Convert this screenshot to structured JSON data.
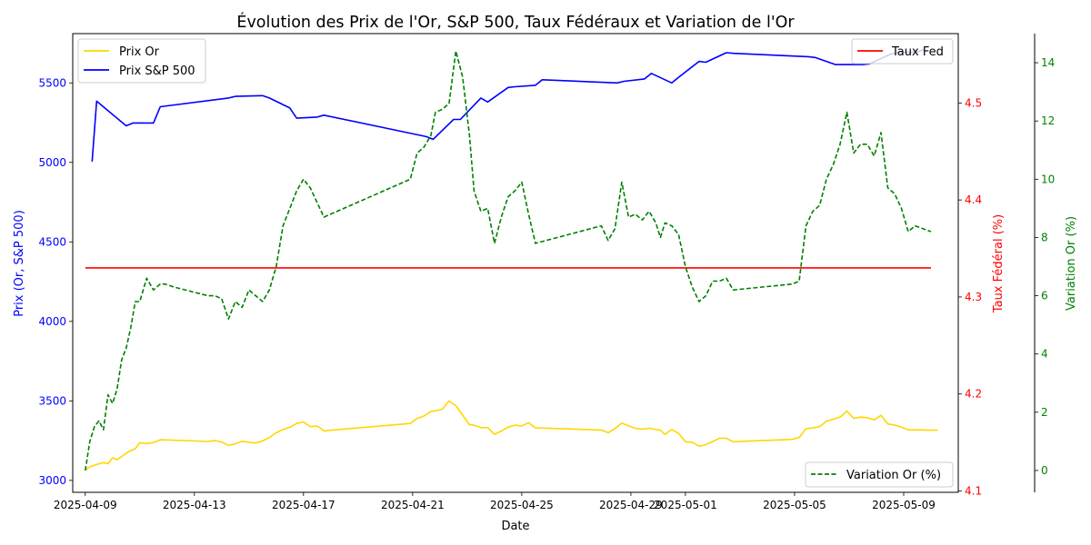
{
  "chart_data": {
    "type": "line",
    "title": "Évolution des Prix de l'Or, S&P 500, Taux Fédéraux et Variation de l'Or",
    "xlabel": "Date",
    "ylabel_left": "Prix (Or, S&P 500)",
    "ylabel_right1": "Taux Fédéral (%)",
    "ylabel_right2": "Variation Or (%)",
    "x_range": [
      "2025-04-08T13:00",
      "2025-05-11T00:00"
    ],
    "ylim_left": [
      2925,
      5810
    ],
    "ylim_right1": [
      4.0986,
      4.5715
    ],
    "ylim_right2": [
      -0.75,
      15.0
    ],
    "x_ticks": [
      {
        "date": "2025-04-09",
        "label": "2025-04-09"
      },
      {
        "date": "2025-04-13",
        "label": "2025-04-13"
      },
      {
        "date": "2025-04-17",
        "label": "2025-04-17"
      },
      {
        "date": "2025-04-21",
        "label": "2025-04-21"
      },
      {
        "date": "2025-04-25",
        "label": "2025-04-25"
      },
      {
        "date": "2025-04-29",
        "label": "2025-04-29"
      },
      {
        "date": "2025-05-01",
        "label": "2025-05-01"
      },
      {
        "date": "2025-05-05",
        "label": "2025-05-05"
      },
      {
        "date": "2025-05-09",
        "label": "2025-05-09"
      }
    ],
    "y_ticks_left": [
      "3000",
      "3500",
      "4000",
      "4500",
      "5000",
      "5500"
    ],
    "y_ticks_right1": [
      "4.1",
      "4.2",
      "4.3",
      "4.4",
      "4.5"
    ],
    "y_ticks_right2": [
      "0",
      "2",
      "4",
      "6",
      "8",
      "10",
      "12",
      "14"
    ],
    "legend_left": {
      "placement": "top-left",
      "entries": [
        "Prix Or",
        "Prix S&P 500"
      ]
    },
    "legend_right1": {
      "placement": "top-right",
      "entries": [
        "Taux Fed"
      ]
    },
    "legend_right2": {
      "placement": "bottom-right",
      "entries": [
        "Variation Or (%)"
      ]
    },
    "colors": {
      "gold": "#ffd700",
      "sp500": "#0000ff",
      "fed": "#ff0000",
      "variation": "#008000",
      "axis": "#000000"
    },
    "series": [
      {
        "name": "Prix Or",
        "axis": "left",
        "x": [
          "2025-04-09T00:00",
          "2025-04-09T04:00",
          "2025-04-09T10:00",
          "2025-04-09T16:00",
          "2025-04-09T20:00",
          "2025-04-10T00:00",
          "2025-04-10T04:00",
          "2025-04-10T08:00",
          "2025-04-10T14:00",
          "2025-04-10T20:00",
          "2025-04-11T00:00",
          "2025-04-11T06:00",
          "2025-04-11T12:00",
          "2025-04-11T18:00",
          "2025-04-13T12:00",
          "2025-04-13T18:00",
          "2025-04-14T00:00",
          "2025-04-14T06:00",
          "2025-04-14T12:00",
          "2025-04-14T18:00",
          "2025-04-15T00:00",
          "2025-04-15T06:00",
          "2025-04-15T12:00",
          "2025-04-15T18:00",
          "2025-04-16T00:00",
          "2025-04-16T06:00",
          "2025-04-16T12:00",
          "2025-04-16T18:00",
          "2025-04-17T00:00",
          "2025-04-17T06:00",
          "2025-04-17T12:00",
          "2025-04-17T18:00",
          "2025-04-20T22:00",
          "2025-04-21T04:00",
          "2025-04-21T10:00",
          "2025-04-21T16:00",
          "2025-04-21T20:00",
          "2025-04-22T02:00",
          "2025-04-22T08:00",
          "2025-04-22T14:00",
          "2025-04-22T20:00",
          "2025-04-23T02:00",
          "2025-04-23T06:00",
          "2025-04-23T12:00",
          "2025-04-23T18:00",
          "2025-04-24T00:00",
          "2025-04-24T06:00",
          "2025-04-24T12:00",
          "2025-04-24T18:00",
          "2025-04-25T00:00",
          "2025-04-25T06:00",
          "2025-04-25T12:00",
          "2025-04-27T22:00",
          "2025-04-28T04:00",
          "2025-04-28T10:00",
          "2025-04-28T16:00",
          "2025-04-28T22:00",
          "2025-04-29T04:00",
          "2025-04-29T10:00",
          "2025-04-29T16:00",
          "2025-04-29T22:00",
          "2025-04-30T02:00",
          "2025-04-30T06:00",
          "2025-04-30T12:00",
          "2025-04-30T18:00",
          "2025-05-01T00:00",
          "2025-05-01T06:00",
          "2025-05-01T12:00",
          "2025-05-01T18:00",
          "2025-05-02T00:00",
          "2025-05-02T06:00",
          "2025-05-02T12:00",
          "2025-05-02T18:00",
          "2025-05-04T22:00",
          "2025-05-05T04:00",
          "2025-05-05T10:00",
          "2025-05-05T16:00",
          "2025-05-05T22:00",
          "2025-05-06T04:00",
          "2025-05-06T10:00",
          "2025-05-06T16:00",
          "2025-05-06T22:00",
          "2025-05-07T04:00",
          "2025-05-07T10:00",
          "2025-05-07T16:00",
          "2025-05-07T22:00",
          "2025-05-08T04:00",
          "2025-05-08T10:00",
          "2025-05-08T16:00",
          "2025-05-08T22:00",
          "2025-05-09T04:00",
          "2025-05-09T10:00",
          "2025-05-10T06:00"
        ],
        "values": [
          3065,
          3085,
          3100,
          3112,
          3105,
          3142,
          3130,
          3150,
          3180,
          3200,
          3237,
          3232,
          3238,
          3256,
          3245,
          3250,
          3242,
          3220,
          3230,
          3246,
          3240,
          3235,
          3248,
          3270,
          3300,
          3320,
          3334,
          3358,
          3368,
          3338,
          3342,
          3312,
          3358,
          3390,
          3405,
          3433,
          3438,
          3448,
          3500,
          3470,
          3410,
          3350,
          3347,
          3332,
          3332,
          3290,
          3310,
          3335,
          3347,
          3342,
          3363,
          3330,
          3317,
          3300,
          3326,
          3360,
          3343,
          3327,
          3322,
          3328,
          3320,
          3316,
          3290,
          3320,
          3296,
          3243,
          3240,
          3215,
          3225,
          3245,
          3265,
          3265,
          3243,
          3258,
          3270,
          3325,
          3330,
          3338,
          3372,
          3385,
          3398,
          3436,
          3390,
          3398,
          3394,
          3381,
          3409,
          3355,
          3348,
          3335,
          3318,
          3318,
          3315
        ]
      },
      {
        "name": "Prix S&P 500",
        "axis": "left",
        "x": [
          "2025-04-09T06:00",
          "2025-04-09T10:00",
          "2025-04-10T12:00",
          "2025-04-10T18:00",
          "2025-04-11T12:00",
          "2025-04-11T18:00",
          "2025-04-14T06:00",
          "2025-04-14T12:00",
          "2025-04-15T12:00",
          "2025-04-15T18:00",
          "2025-04-16T12:00",
          "2025-04-16T18:00",
          "2025-04-17T12:00",
          "2025-04-17T18:00",
          "2025-04-21T12:00",
          "2025-04-21T18:00",
          "2025-04-22T12:00",
          "2025-04-22T18:00",
          "2025-04-23T12:00",
          "2025-04-23T18:00",
          "2025-04-24T12:00",
          "2025-04-24T18:00",
          "2025-04-25T12:00",
          "2025-04-25T18:00",
          "2025-04-28T12:00",
          "2025-04-28T18:00",
          "2025-04-29T12:00",
          "2025-04-29T18:00",
          "2025-04-30T12:00",
          "2025-04-30T18:00",
          "2025-05-01T12:00",
          "2025-05-01T18:00",
          "2025-05-02T12:00",
          "2025-05-02T18:00",
          "2025-05-05T12:00",
          "2025-05-05T18:00",
          "2025-05-06T12:00",
          "2025-05-06T18:00",
          "2025-05-07T12:00",
          "2025-05-07T18:00",
          "2025-05-08T12:00",
          "2025-05-08T18:00",
          "2025-05-09T12:00",
          "2025-05-09T18:00"
        ],
        "values": [
          5005,
          5385,
          5230,
          5248,
          5248,
          5350,
          5405,
          5415,
          5420,
          5405,
          5342,
          5278,
          5285,
          5297,
          5162,
          5145,
          5270,
          5270,
          5405,
          5380,
          5471,
          5476,
          5485,
          5520,
          5500,
          5510,
          5525,
          5560,
          5500,
          5535,
          5635,
          5630,
          5690,
          5686,
          5665,
          5660,
          5615,
          5615,
          5615,
          5620,
          5680,
          5690,
          5695,
          5710
        ]
      },
      {
        "name": "Taux Fed",
        "axis": "right1",
        "x": [
          "2025-04-09T00:00",
          "2025-05-10T00:00"
        ],
        "values": [
          4.33,
          4.33
        ]
      },
      {
        "name": "Variation Or (%)",
        "axis": "right2",
        "style": "dashed",
        "x": [
          "2025-04-09T00:00",
          "2025-04-09T04:00",
          "2025-04-09T08:00",
          "2025-04-09T12:00",
          "2025-04-09T16:00",
          "2025-04-09T20:00",
          "2025-04-10T00:00",
          "2025-04-10T04:00",
          "2025-04-10T08:00",
          "2025-04-10T12:00",
          "2025-04-10T16:00",
          "2025-04-10T20:00",
          "2025-04-11T00:00",
          "2025-04-11T06:00",
          "2025-04-11T12:00",
          "2025-04-11T18:00",
          "2025-04-11T22:00",
          "2025-04-12T06:00",
          "2025-04-13T12:00",
          "2025-04-13T18:00",
          "2025-04-14T00:00",
          "2025-04-14T06:00",
          "2025-04-14T12:00",
          "2025-04-14T18:00",
          "2025-04-15T00:00",
          "2025-04-15T06:00",
          "2025-04-15T12:00",
          "2025-04-15T18:00",
          "2025-04-16T00:00",
          "2025-04-16T06:00",
          "2025-04-16T12:00",
          "2025-04-16T18:00",
          "2025-04-17T00:00",
          "2025-04-17T06:00",
          "2025-04-17T12:00",
          "2025-04-17T18:00",
          "2025-04-20T22:00",
          "2025-04-21T04:00",
          "2025-04-21T10:00",
          "2025-04-21T16:00",
          "2025-04-21T20:00",
          "2025-04-22T02:00",
          "2025-04-22T08:00",
          "2025-04-22T14:00",
          "2025-04-22T20:00",
          "2025-04-23T02:00",
          "2025-04-23T06:00",
          "2025-04-23T12:00",
          "2025-04-23T18:00",
          "2025-04-24T00:00",
          "2025-04-24T06:00",
          "2025-04-24T12:00",
          "2025-04-24T18:00",
          "2025-04-25T00:00",
          "2025-04-25T06:00",
          "2025-04-25T12:00",
          "2025-04-27T22:00",
          "2025-04-28T04:00",
          "2025-04-28T10:00",
          "2025-04-28T16:00",
          "2025-04-28T22:00",
          "2025-04-29T04:00",
          "2025-04-29T10:00",
          "2025-04-29T16:00",
          "2025-04-29T22:00",
          "2025-04-30T02:00",
          "2025-04-30T06:00",
          "2025-04-30T12:00",
          "2025-04-30T18:00",
          "2025-05-01T00:00",
          "2025-05-01T06:00",
          "2025-05-01T12:00",
          "2025-05-01T18:00",
          "2025-05-02T00:00",
          "2025-05-02T06:00",
          "2025-05-02T12:00",
          "2025-05-02T18:00",
          "2025-05-04T22:00",
          "2025-05-05T04:00",
          "2025-05-05T10:00",
          "2025-05-05T16:00",
          "2025-05-05T22:00",
          "2025-05-06T04:00",
          "2025-05-06T10:00",
          "2025-05-06T16:00",
          "2025-05-06T22:00",
          "2025-05-07T04:00",
          "2025-05-07T10:00",
          "2025-05-07T16:00",
          "2025-05-07T22:00",
          "2025-05-08T04:00",
          "2025-05-08T10:00",
          "2025-05-08T16:00",
          "2025-05-08T22:00",
          "2025-05-09T04:00",
          "2025-05-09T10:00",
          "2025-05-10T00:00"
        ],
        "values": [
          0.0,
          1.0,
          1.5,
          1.7,
          1.4,
          2.6,
          2.3,
          2.8,
          3.8,
          4.2,
          4.9,
          5.8,
          5.8,
          6.6,
          6.2,
          6.4,
          6.4,
          6.3,
          6.0,
          6.0,
          5.9,
          5.2,
          5.8,
          5.6,
          6.2,
          6.0,
          5.8,
          6.2,
          7.0,
          8.4,
          9.0,
          9.6,
          10.0,
          9.7,
          9.2,
          8.7,
          10.0,
          10.9,
          11.1,
          11.5,
          12.3,
          12.4,
          12.6,
          14.4,
          13.5,
          11.5,
          9.6,
          8.9,
          9.0,
          7.8,
          8.7,
          9.4,
          9.6,
          9.9,
          8.8,
          7.8,
          8.4,
          7.9,
          8.3,
          9.9,
          8.7,
          8.8,
          8.6,
          8.9,
          8.5,
          8.0,
          8.5,
          8.4,
          8.1,
          7.0,
          6.3,
          5.8,
          6.0,
          6.5,
          6.5,
          6.6,
          6.2,
          6.4,
          6.5,
          8.4,
          8.9,
          9.1,
          10.0,
          10.5,
          11.2,
          12.3,
          10.9,
          11.2,
          11.2,
          10.8,
          11.6,
          9.7,
          9.5,
          9.0,
          8.2,
          8.4,
          8.2
        ]
      }
    ]
  }
}
